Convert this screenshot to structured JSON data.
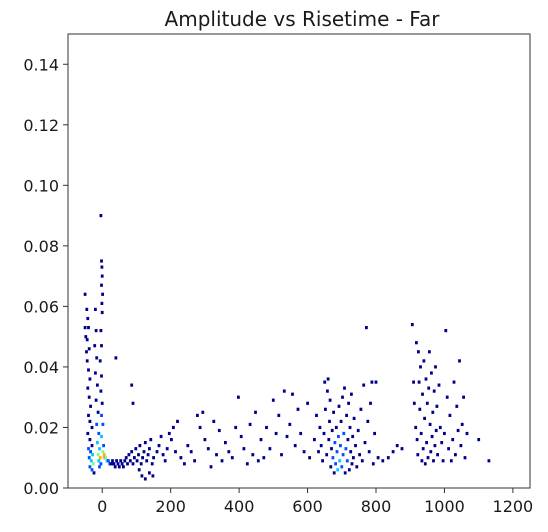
{
  "chart_data": {
    "type": "heatmap",
    "title": "Amplitude vs Risetime - Far",
    "xlabel": "",
    "ylabel": "",
    "xlim": [
      -100,
      1250
    ],
    "ylim": [
      0,
      0.15
    ],
    "xticks": [
      0,
      200,
      400,
      600,
      800,
      1000,
      1200
    ],
    "yticks": [
      0.0,
      0.02,
      0.04,
      0.06,
      0.08,
      0.1,
      0.12,
      0.14
    ],
    "xtick_labels": [
      "0",
      "200",
      "400",
      "600",
      "800",
      "1000",
      "1200"
    ],
    "ytick_labels": [
      "0.00",
      "0.02",
      "0.04",
      "0.06",
      "0.08",
      "0.10",
      "0.12",
      "0.14"
    ],
    "grid": false,
    "colormap": "jet",
    "bin_color_low": "#00008b",
    "bin_color_high": "#ff0000",
    "cells": [
      [
        -50,
        0.053,
        1
      ],
      [
        -48,
        0.05,
        1
      ],
      [
        -46,
        0.045,
        1
      ],
      [
        -50,
        0.064,
        1
      ],
      [
        -45,
        0.059,
        1
      ],
      [
        -42,
        0.056,
        1
      ],
      [
        -40,
        0.053,
        1
      ],
      [
        -44,
        0.049,
        1
      ],
      [
        -38,
        0.046,
        1
      ],
      [
        -44,
        0.042,
        1
      ],
      [
        -40,
        0.039,
        1
      ],
      [
        -36,
        0.036,
        1
      ],
      [
        -42,
        0.033,
        1
      ],
      [
        -38,
        0.03,
        1
      ],
      [
        -34,
        0.027,
        1
      ],
      [
        -40,
        0.024,
        1
      ],
      [
        -36,
        0.022,
        1
      ],
      [
        -30,
        0.02,
        1
      ],
      [
        -42,
        0.018,
        1
      ],
      [
        -36,
        0.016,
        1
      ],
      [
        -30,
        0.014,
        1
      ],
      [
        -40,
        0.013,
        2
      ],
      [
        -34,
        0.012,
        2
      ],
      [
        -28,
        0.011,
        3
      ],
      [
        -38,
        0.01,
        2
      ],
      [
        -32,
        0.009,
        3
      ],
      [
        -26,
        0.008,
        4
      ],
      [
        -36,
        0.007,
        2
      ],
      [
        -30,
        0.006,
        2
      ],
      [
        -24,
        0.005,
        1
      ],
      [
        -20,
        0.059,
        1
      ],
      [
        -18,
        0.052,
        1
      ],
      [
        -22,
        0.047,
        1
      ],
      [
        -16,
        0.043,
        1
      ],
      [
        -20,
        0.038,
        1
      ],
      [
        -14,
        0.034,
        1
      ],
      [
        -18,
        0.029,
        1
      ],
      [
        -12,
        0.025,
        1
      ],
      [
        -16,
        0.021,
        2
      ],
      [
        -10,
        0.018,
        2
      ],
      [
        -14,
        0.015,
        3
      ],
      [
        -8,
        0.013,
        3
      ],
      [
        -12,
        0.011,
        4
      ],
      [
        -6,
        0.01,
        5
      ],
      [
        -10,
        0.009,
        3
      ],
      [
        -4,
        0.008,
        2
      ],
      [
        -8,
        0.007,
        2
      ],
      [
        -4,
        0.052,
        1
      ],
      [
        -2,
        0.047,
        1
      ],
      [
        -6,
        0.042,
        1
      ],
      [
        -2,
        0.037,
        1
      ],
      [
        -4,
        0.032,
        1
      ],
      [
        0,
        0.028,
        1
      ],
      [
        -2,
        0.024,
        2
      ],
      [
        2,
        0.021,
        2
      ],
      [
        -2,
        0.017,
        3
      ],
      [
        4,
        0.014,
        2
      ],
      [
        2,
        0.012,
        4
      ],
      [
        6,
        0.011,
        5
      ],
      [
        8,
        0.01,
        6
      ],
      [
        -4,
        0.09,
        1
      ],
      [
        -2,
        0.075,
        1
      ],
      [
        -1,
        0.073,
        1
      ],
      [
        0,
        0.07,
        1
      ],
      [
        -2,
        0.067,
        1
      ],
      [
        1,
        0.064,
        1
      ],
      [
        -1,
        0.061,
        1
      ],
      [
        0,
        0.058,
        1
      ],
      [
        10,
        0.01,
        4
      ],
      [
        14,
        0.009,
        3
      ],
      [
        18,
        0.009,
        2
      ],
      [
        22,
        0.008,
        2
      ],
      [
        26,
        0.008,
        1
      ],
      [
        30,
        0.009,
        1
      ],
      [
        34,
        0.008,
        1
      ],
      [
        38,
        0.007,
        1
      ],
      [
        42,
        0.009,
        1
      ],
      [
        46,
        0.008,
        1
      ],
      [
        50,
        0.007,
        1
      ],
      [
        54,
        0.009,
        1
      ],
      [
        58,
        0.008,
        1
      ],
      [
        62,
        0.007,
        1
      ],
      [
        66,
        0.009,
        1
      ],
      [
        70,
        0.01,
        1
      ],
      [
        74,
        0.008,
        1
      ],
      [
        78,
        0.011,
        1
      ],
      [
        82,
        0.009,
        1
      ],
      [
        86,
        0.012,
        1
      ],
      [
        90,
        0.008,
        1
      ],
      [
        94,
        0.01,
        1
      ],
      [
        98,
        0.013,
        1
      ],
      [
        102,
        0.009,
        1
      ],
      [
        106,
        0.011,
        1
      ],
      [
        110,
        0.014,
        1
      ],
      [
        114,
        0.008,
        1
      ],
      [
        118,
        0.01,
        1
      ],
      [
        122,
        0.012,
        1
      ],
      [
        126,
        0.015,
        1
      ],
      [
        130,
        0.009,
        1
      ],
      [
        134,
        0.011,
        1
      ],
      [
        138,
        0.013,
        1
      ],
      [
        142,
        0.016,
        1
      ],
      [
        146,
        0.008,
        1
      ],
      [
        150,
        0.01,
        1
      ],
      [
        40,
        0.043,
        1
      ],
      [
        86,
        0.034,
        1
      ],
      [
        90,
        0.028,
        1
      ],
      [
        108,
        0.006,
        1
      ],
      [
        116,
        0.004,
        1
      ],
      [
        126,
        0.003,
        1
      ],
      [
        138,
        0.005,
        1
      ],
      [
        148,
        0.004,
        1
      ],
      [
        160,
        0.012,
        1
      ],
      [
        166,
        0.014,
        1
      ],
      [
        172,
        0.017,
        1
      ],
      [
        178,
        0.011,
        1
      ],
      [
        184,
        0.009,
        1
      ],
      [
        190,
        0.013,
        1
      ],
      [
        196,
        0.018,
        1
      ],
      [
        202,
        0.016,
        1
      ],
      [
        208,
        0.02,
        1
      ],
      [
        214,
        0.012,
        1
      ],
      [
        220,
        0.022,
        1
      ],
      [
        230,
        0.01,
        1
      ],
      [
        240,
        0.008,
        1
      ],
      [
        250,
        0.014,
        1
      ],
      [
        260,
        0.012,
        1
      ],
      [
        270,
        0.009,
        1
      ],
      [
        278,
        0.024,
        1
      ],
      [
        286,
        0.02,
        1
      ],
      [
        294,
        0.025,
        1
      ],
      [
        300,
        0.016,
        1
      ],
      [
        310,
        0.013,
        1
      ],
      [
        318,
        0.007,
        1
      ],
      [
        326,
        0.022,
        1
      ],
      [
        334,
        0.011,
        1
      ],
      [
        342,
        0.019,
        1
      ],
      [
        350,
        0.009,
        1
      ],
      [
        360,
        0.015,
        1
      ],
      [
        370,
        0.012,
        1
      ],
      [
        380,
        0.01,
        1
      ],
      [
        390,
        0.02,
        1
      ],
      [
        398,
        0.03,
        1
      ],
      [
        406,
        0.017,
        1
      ],
      [
        414,
        0.013,
        1
      ],
      [
        424,
        0.008,
        1
      ],
      [
        432,
        0.021,
        1
      ],
      [
        440,
        0.011,
        1
      ],
      [
        448,
        0.025,
        1
      ],
      [
        456,
        0.009,
        1
      ],
      [
        464,
        0.016,
        1
      ],
      [
        472,
        0.01,
        1
      ],
      [
        480,
        0.02,
        1
      ],
      [
        490,
        0.013,
        1
      ],
      [
        500,
        0.029,
        1
      ],
      [
        508,
        0.018,
        1
      ],
      [
        516,
        0.024,
        1
      ],
      [
        524,
        0.011,
        1
      ],
      [
        532,
        0.032,
        1
      ],
      [
        540,
        0.017,
        1
      ],
      [
        548,
        0.021,
        1
      ],
      [
        556,
        0.031,
        1
      ],
      [
        564,
        0.014,
        1
      ],
      [
        572,
        0.026,
        1
      ],
      [
        580,
        0.018,
        1
      ],
      [
        590,
        0.012,
        1
      ],
      [
        600,
        0.028,
        1
      ],
      [
        606,
        0.01,
        1
      ],
      [
        620,
        0.016,
        1
      ],
      [
        626,
        0.024,
        1
      ],
      [
        632,
        0.012,
        1
      ],
      [
        636,
        0.02,
        1
      ],
      [
        640,
        0.014,
        1
      ],
      [
        644,
        0.009,
        1
      ],
      [
        648,
        0.018,
        1
      ],
      [
        650,
        0.035,
        1
      ],
      [
        652,
        0.026,
        1
      ],
      [
        656,
        0.011,
        1
      ],
      [
        658,
        0.032,
        1
      ],
      [
        660,
        0.036,
        1
      ],
      [
        662,
        0.016,
        1
      ],
      [
        664,
        0.022,
        1
      ],
      [
        666,
        0.029,
        1
      ],
      [
        668,
        0.007,
        1
      ],
      [
        670,
        0.013,
        1
      ],
      [
        672,
        0.019,
        1
      ],
      [
        674,
        0.01,
        2
      ],
      [
        676,
        0.025,
        1
      ],
      [
        678,
        0.005,
        1
      ],
      [
        680,
        0.015,
        2
      ],
      [
        682,
        0.008,
        2
      ],
      [
        684,
        0.02,
        1
      ],
      [
        686,
        0.012,
        2
      ],
      [
        688,
        0.006,
        3
      ],
      [
        690,
        0.017,
        2
      ],
      [
        692,
        0.027,
        1
      ],
      [
        694,
        0.009,
        3
      ],
      [
        696,
        0.014,
        2
      ],
      [
        698,
        0.022,
        1
      ],
      [
        700,
        0.007,
        2
      ],
      [
        702,
        0.03,
        1
      ],
      [
        704,
        0.011,
        2
      ],
      [
        706,
        0.018,
        2
      ],
      [
        708,
        0.033,
        1
      ],
      [
        710,
        0.005,
        1
      ],
      [
        712,
        0.013,
        2
      ],
      [
        714,
        0.024,
        1
      ],
      [
        716,
        0.009,
        2
      ],
      [
        718,
        0.016,
        1
      ],
      [
        720,
        0.028,
        1
      ],
      [
        722,
        0.006,
        1
      ],
      [
        724,
        0.02,
        1
      ],
      [
        726,
        0.012,
        1
      ],
      [
        728,
        0.031,
        1
      ],
      [
        730,
        0.008,
        1
      ],
      [
        732,
        0.017,
        1
      ],
      [
        734,
        0.01,
        1
      ],
      [
        736,
        0.023,
        1
      ],
      [
        740,
        0.014,
        1
      ],
      [
        744,
        0.007,
        1
      ],
      [
        748,
        0.019,
        1
      ],
      [
        752,
        0.011,
        1
      ],
      [
        756,
        0.026,
        1
      ],
      [
        760,
        0.009,
        1
      ],
      [
        764,
        0.034,
        1
      ],
      [
        768,
        0.015,
        1
      ],
      [
        772,
        0.053,
        1
      ],
      [
        776,
        0.022,
        1
      ],
      [
        780,
        0.012,
        1
      ],
      [
        784,
        0.028,
        1
      ],
      [
        788,
        0.035,
        1
      ],
      [
        792,
        0.008,
        1
      ],
      [
        796,
        0.018,
        1
      ],
      [
        800,
        0.035,
        1
      ],
      [
        806,
        0.01,
        1
      ],
      [
        820,
        0.009,
        1
      ],
      [
        836,
        0.01,
        1
      ],
      [
        850,
        0.012,
        1
      ],
      [
        862,
        0.014,
        1
      ],
      [
        876,
        0.013,
        1
      ],
      [
        906,
        0.054,
        1
      ],
      [
        910,
        0.035,
        1
      ],
      [
        912,
        0.028,
        1
      ],
      [
        916,
        0.02,
        1
      ],
      [
        918,
        0.048,
        1
      ],
      [
        920,
        0.016,
        1
      ],
      [
        922,
        0.011,
        1
      ],
      [
        924,
        0.045,
        1
      ],
      [
        926,
        0.035,
        1
      ],
      [
        928,
        0.026,
        1
      ],
      [
        930,
        0.04,
        1
      ],
      [
        932,
        0.018,
        1
      ],
      [
        934,
        0.009,
        1
      ],
      [
        936,
        0.031,
        1
      ],
      [
        938,
        0.013,
        1
      ],
      [
        940,
        0.042,
        1
      ],
      [
        942,
        0.023,
        1
      ],
      [
        944,
        0.008,
        1
      ],
      [
        946,
        0.036,
        1
      ],
      [
        948,
        0.015,
        1
      ],
      [
        950,
        0.028,
        1
      ],
      [
        952,
        0.01,
        1
      ],
      [
        954,
        0.033,
        1
      ],
      [
        956,
        0.045,
        1
      ],
      [
        958,
        0.021,
        1
      ],
      [
        960,
        0.012,
        1
      ],
      [
        962,
        0.038,
        1
      ],
      [
        964,
        0.017,
        1
      ],
      [
        966,
        0.025,
        1
      ],
      [
        968,
        0.009,
        1
      ],
      [
        970,
        0.032,
        1
      ],
      [
        972,
        0.014,
        1
      ],
      [
        974,
        0.04,
        1
      ],
      [
        976,
        0.019,
        1
      ],
      [
        978,
        0.027,
        1
      ],
      [
        980,
        0.011,
        1
      ],
      [
        984,
        0.034,
        1
      ],
      [
        988,
        0.02,
        1
      ],
      [
        992,
        0.015,
        1
      ],
      [
        996,
        0.009,
        1
      ],
      [
        1000,
        0.018,
        1
      ],
      [
        1004,
        0.052,
        1
      ],
      [
        1008,
        0.03,
        1
      ],
      [
        1012,
        0.013,
        1
      ],
      [
        1016,
        0.024,
        1
      ],
      [
        1020,
        0.009,
        1
      ],
      [
        1024,
        0.016,
        1
      ],
      [
        1028,
        0.035,
        1
      ],
      [
        1032,
        0.011,
        1
      ],
      [
        1036,
        0.027,
        1
      ],
      [
        1040,
        0.019,
        1
      ],
      [
        1044,
        0.042,
        1
      ],
      [
        1048,
        0.014,
        1
      ],
      [
        1052,
        0.021,
        1
      ],
      [
        1056,
        0.03,
        1
      ],
      [
        1060,
        0.01,
        1
      ],
      [
        1066,
        0.018,
        1
      ],
      [
        1100,
        0.016,
        1
      ],
      [
        1130,
        0.009,
        1
      ]
    ]
  }
}
